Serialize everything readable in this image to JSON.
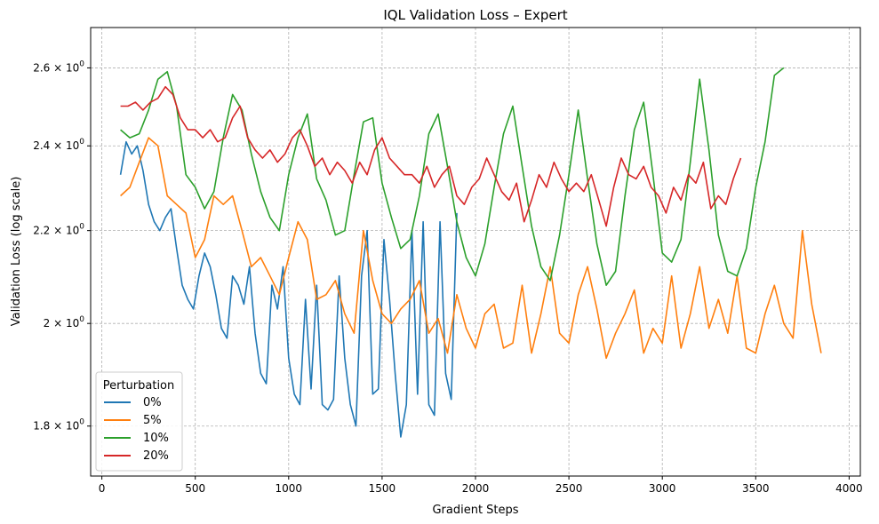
{
  "chart_data": {
    "type": "line",
    "title": "IQL Validation Loss – Expert",
    "xlabel": "Gradient Steps",
    "ylabel": "Validation Loss (log scale)",
    "y_scale": "log",
    "xlim": [
      -60,
      4060
    ],
    "ylim": [
      1.71,
      2.71
    ],
    "x_ticks": [
      0,
      500,
      1000,
      1500,
      2000,
      2500,
      3000,
      3500,
      4000
    ],
    "x_tick_labels": [
      "0",
      "500",
      "1000",
      "1500",
      "2000",
      "2500",
      "3000",
      "3500",
      "4000"
    ],
    "y_ticks": [
      1.8,
      2.0,
      2.2,
      2.4,
      2.6
    ],
    "y_tick_labels": [
      {
        "base": "1.8",
        "exp": "0"
      },
      {
        "base": "2",
        "exp": "0"
      },
      {
        "base": "2.2",
        "exp": "0"
      },
      {
        "base": "2.4",
        "exp": "0"
      },
      {
        "base": "2.6",
        "exp": "0"
      }
    ],
    "grid": true,
    "legend_title": "Perturbation",
    "legend_position": "lower-left",
    "series": [
      {
        "name": "0%",
        "color": "#1f77b4",
        "x": [
          100,
          130,
          160,
          190,
          220,
          250,
          280,
          310,
          340,
          370,
          400,
          430,
          460,
          490,
          520,
          550,
          580,
          610,
          640,
          670,
          700,
          730,
          760,
          790,
          820,
          850,
          880,
          910,
          940,
          970,
          1000,
          1030,
          1060,
          1090,
          1120,
          1150,
          1180,
          1210,
          1240,
          1270,
          1300,
          1330,
          1360,
          1390,
          1420,
          1450,
          1480,
          1510,
          1540,
          1570,
          1600,
          1630,
          1660,
          1690,
          1720,
          1750,
          1780,
          1810,
          1840,
          1870,
          1900
        ],
        "y": [
          2.33,
          2.41,
          2.38,
          2.4,
          2.34,
          2.26,
          2.22,
          2.2,
          2.23,
          2.25,
          2.16,
          2.08,
          2.05,
          2.03,
          2.1,
          2.15,
          2.12,
          2.06,
          1.99,
          1.97,
          2.1,
          2.08,
          2.04,
          2.12,
          1.98,
          1.9,
          1.88,
          2.08,
          2.03,
          2.12,
          1.93,
          1.86,
          1.84,
          2.05,
          1.87,
          2.08,
          1.84,
          1.83,
          1.85,
          2.1,
          1.93,
          1.84,
          1.8,
          2.1,
          2.2,
          1.86,
          1.87,
          2.18,
          2.05,
          1.9,
          1.78,
          1.84,
          2.2,
          1.86,
          2.22,
          1.84,
          1.82,
          2.22,
          1.9,
          1.85,
          2.24
        ]
      },
      {
        "name": "5%",
        "color": "#ff7f0e",
        "x": [
          100,
          150,
          200,
          250,
          300,
          350,
          400,
          450,
          500,
          550,
          600,
          650,
          700,
          750,
          800,
          850,
          900,
          950,
          1000,
          1050,
          1100,
          1150,
          1200,
          1250,
          1300,
          1350,
          1400,
          1450,
          1500,
          1550,
          1600,
          1650,
          1700,
          1750,
          1800,
          1850,
          1900,
          1950,
          2000,
          2050,
          2100,
          2150,
          2200,
          2250,
          2300,
          2350,
          2400,
          2450,
          2500,
          2550,
          2600,
          2650,
          2700,
          2750,
          2800,
          2850,
          2900,
          2950,
          3000,
          3050,
          3100,
          3150,
          3200,
          3250,
          3300,
          3350,
          3400,
          3450,
          3500,
          3550,
          3600,
          3650,
          3700,
          3750,
          3800,
          3850
        ],
        "y": [
          2.28,
          2.3,
          2.36,
          2.42,
          2.4,
          2.28,
          2.26,
          2.24,
          2.14,
          2.18,
          2.28,
          2.26,
          2.28,
          2.2,
          2.12,
          2.14,
          2.1,
          2.06,
          2.14,
          2.22,
          2.18,
          2.05,
          2.06,
          2.09,
          2.02,
          1.98,
          2.2,
          2.09,
          2.02,
          2.0,
          2.03,
          2.05,
          2.09,
          1.98,
          2.01,
          1.94,
          2.06,
          1.99,
          1.95,
          2.02,
          2.04,
          1.95,
          1.96,
          2.08,
          1.94,
          2.02,
          2.12,
          1.98,
          1.96,
          2.06,
          2.12,
          2.03,
          1.93,
          1.98,
          2.02,
          2.07,
          1.94,
          1.99,
          1.96,
          2.1,
          1.95,
          2.02,
          2.12,
          1.99,
          2.05,
          1.98,
          2.1,
          1.95,
          1.94,
          2.02,
          2.08,
          2.0,
          1.97,
          2.2,
          2.04,
          1.94
        ]
      },
      {
        "name": "10%",
        "color": "#2ca02c",
        "x": [
          100,
          150,
          200,
          250,
          300,
          350,
          400,
          450,
          500,
          550,
          600,
          650,
          700,
          750,
          800,
          850,
          900,
          950,
          1000,
          1050,
          1100,
          1150,
          1200,
          1250,
          1300,
          1350,
          1400,
          1450,
          1500,
          1550,
          1600,
          1650,
          1700,
          1750,
          1800,
          1850,
          1900,
          1950,
          2000,
          2050,
          2100,
          2150,
          2200,
          2250,
          2300,
          2350,
          2400,
          2450,
          2500,
          2550,
          2600,
          2650,
          2700,
          2750,
          2800,
          2850,
          2900,
          2950,
          3000,
          3050,
          3100,
          3150,
          3200,
          3250,
          3300,
          3350,
          3400,
          3450,
          3500,
          3550,
          3600,
          3650
        ],
        "y": [
          2.44,
          2.42,
          2.43,
          2.49,
          2.57,
          2.59,
          2.5,
          2.33,
          2.3,
          2.25,
          2.29,
          2.42,
          2.53,
          2.49,
          2.38,
          2.29,
          2.23,
          2.2,
          2.33,
          2.42,
          2.48,
          2.32,
          2.27,
          2.19,
          2.2,
          2.33,
          2.46,
          2.47,
          2.31,
          2.23,
          2.16,
          2.18,
          2.28,
          2.43,
          2.48,
          2.35,
          2.22,
          2.14,
          2.1,
          2.17,
          2.3,
          2.43,
          2.5,
          2.35,
          2.21,
          2.12,
          2.09,
          2.19,
          2.33,
          2.49,
          2.32,
          2.17,
          2.08,
          2.11,
          2.28,
          2.44,
          2.51,
          2.33,
          2.15,
          2.13,
          2.18,
          2.36,
          2.57,
          2.39,
          2.19,
          2.11,
          2.1,
          2.16,
          2.3,
          2.41,
          2.58,
          2.6
        ]
      },
      {
        "name": "20%",
        "color": "#d62728",
        "x": [
          100,
          140,
          180,
          220,
          260,
          300,
          340,
          380,
          420,
          460,
          500,
          540,
          580,
          620,
          660,
          700,
          740,
          780,
          820,
          860,
          900,
          940,
          980,
          1020,
          1060,
          1100,
          1140,
          1180,
          1220,
          1260,
          1300,
          1340,
          1380,
          1420,
          1460,
          1500,
          1540,
          1580,
          1620,
          1660,
          1700,
          1740,
          1780,
          1820,
          1860,
          1900,
          1940,
          1980,
          2020,
          2060,
          2100,
          2140,
          2180,
          2220,
          2260,
          2300,
          2340,
          2380,
          2420,
          2460,
          2500,
          2540,
          2580,
          2620,
          2660,
          2700,
          2740,
          2780,
          2820,
          2860,
          2900,
          2940,
          2980,
          3020,
          3060,
          3100,
          3140,
          3180,
          3220,
          3260,
          3300,
          3340,
          3380,
          3420
        ],
        "y": [
          2.5,
          2.5,
          2.51,
          2.49,
          2.51,
          2.52,
          2.55,
          2.53,
          2.47,
          2.44,
          2.44,
          2.42,
          2.44,
          2.41,
          2.42,
          2.47,
          2.5,
          2.42,
          2.39,
          2.37,
          2.39,
          2.36,
          2.38,
          2.42,
          2.44,
          2.4,
          2.35,
          2.37,
          2.33,
          2.36,
          2.34,
          2.31,
          2.36,
          2.33,
          2.39,
          2.42,
          2.37,
          2.35,
          2.33,
          2.33,
          2.31,
          2.35,
          2.3,
          2.33,
          2.35,
          2.28,
          2.26,
          2.3,
          2.32,
          2.37,
          2.33,
          2.29,
          2.27,
          2.31,
          2.22,
          2.27,
          2.33,
          2.3,
          2.36,
          2.32,
          2.29,
          2.31,
          2.29,
          2.33,
          2.27,
          2.21,
          2.3,
          2.37,
          2.33,
          2.32,
          2.35,
          2.3,
          2.28,
          2.24,
          2.3,
          2.27,
          2.33,
          2.31,
          2.36,
          2.25,
          2.28,
          2.26,
          2.32,
          2.37
        ]
      }
    ]
  }
}
